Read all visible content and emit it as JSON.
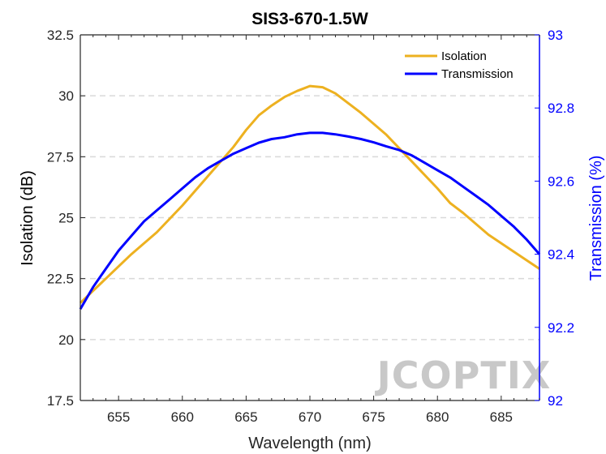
{
  "chart_data": {
    "type": "line",
    "title": "SIS3-670-1.5W",
    "xlabel": "Wavelength (nm)",
    "ylabel_left": "Isolation (dB)",
    "ylabel_right": "Transmission (%)",
    "xlim": [
      652,
      688
    ],
    "ylim_left": [
      17.5,
      32.5
    ],
    "ylim_right": [
      92,
      93
    ],
    "x_ticks": [
      655,
      660,
      665,
      670,
      675,
      680,
      685
    ],
    "y_ticks_left": [
      17.5,
      20,
      22.5,
      25,
      27.5,
      30,
      32.5
    ],
    "y_ticks_right": [
      92,
      92.2,
      92.4,
      92.6,
      92.8,
      93
    ],
    "y_tick_labels_left": [
      "17.5",
      "20",
      "22.5",
      "25",
      "27.5",
      "30",
      "32.5"
    ],
    "y_tick_labels_right": [
      "92",
      "92.2",
      "92.4",
      "92.6",
      "92.8",
      "93"
    ],
    "grid": "horizontal dashed",
    "legend_position": "top-right",
    "series": [
      {
        "name": "Isolation",
        "axis": "left",
        "color": "#EDB120",
        "x": [
          652,
          654,
          656,
          658,
          660,
          662,
          664,
          665,
          666,
          667,
          668,
          669,
          670,
          671,
          672,
          674,
          676,
          678,
          680,
          681,
          682,
          684,
          686,
          688
        ],
        "y": [
          21.5,
          22.5,
          23.5,
          24.4,
          25.5,
          26.7,
          27.9,
          28.6,
          29.2,
          29.6,
          29.95,
          30.2,
          30.4,
          30.35,
          30.1,
          29.3,
          28.4,
          27.3,
          26.2,
          25.6,
          25.2,
          24.3,
          23.6,
          22.9
        ]
      },
      {
        "name": "Transmission",
        "axis": "right",
        "color": "#0000FF",
        "x": [
          652,
          653,
          654,
          655,
          656,
          657,
          658,
          659,
          660,
          661,
          662,
          663,
          664,
          665,
          666,
          667,
          668,
          669,
          670,
          671,
          672,
          673,
          674,
          675,
          676,
          677,
          678,
          679,
          680,
          681,
          682,
          683,
          684,
          685,
          686,
          687,
          688
        ],
        "y": [
          92.25,
          92.31,
          92.36,
          92.41,
          92.45,
          92.49,
          92.52,
          92.55,
          92.58,
          92.61,
          92.635,
          92.655,
          92.675,
          92.69,
          92.705,
          92.715,
          92.72,
          92.728,
          92.732,
          92.732,
          92.728,
          92.722,
          92.715,
          92.706,
          92.695,
          92.685,
          92.67,
          92.65,
          92.63,
          92.61,
          92.585,
          92.56,
          92.535,
          92.505,
          92.475,
          92.44,
          92.4
        ]
      }
    ]
  },
  "watermark": "JCOPTIX"
}
